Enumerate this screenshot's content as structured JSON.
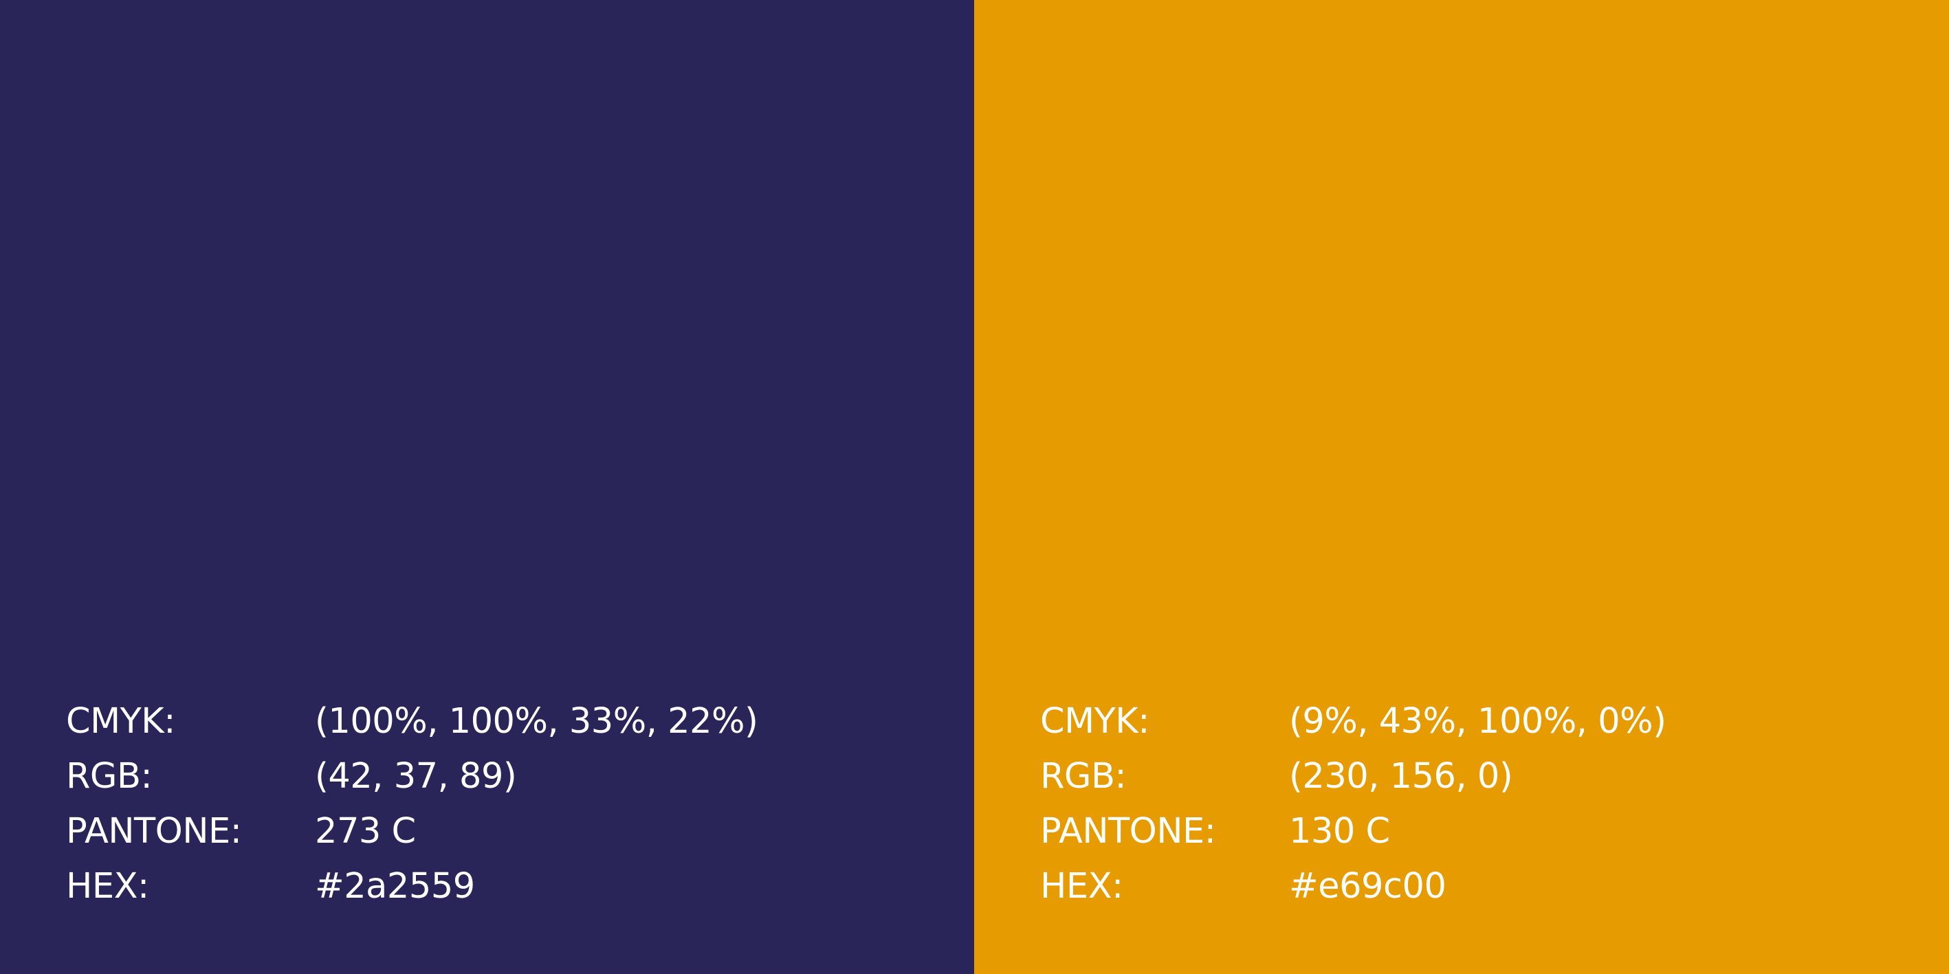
{
  "swatches": [
    {
      "color": "#2a2559",
      "specs": [
        {
          "label": "CMYK:",
          "value": "(100%, 100%, 33%, 22%)"
        },
        {
          "label": "RGB:",
          "value": "(42, 37, 89)"
        },
        {
          "label": "PANTONE:",
          "value": "273 C"
        },
        {
          "label": "HEX:",
          "value": "#2a2559"
        }
      ]
    },
    {
      "color": "#e69c00",
      "specs": [
        {
          "label": "CMYK:",
          "value": "(9%, 43%, 100%, 0%)"
        },
        {
          "label": "RGB:",
          "value": "(230, 156, 0)"
        },
        {
          "label": "PANTONE:",
          "value": "130 C"
        },
        {
          "label": "HEX:",
          "value": "#e69c00"
        }
      ]
    }
  ]
}
